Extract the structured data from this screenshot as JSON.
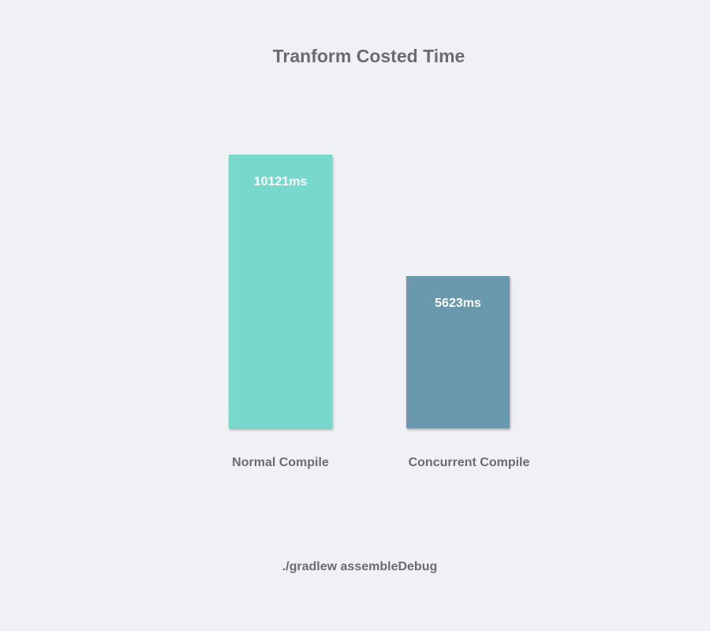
{
  "chart_data": {
    "type": "bar",
    "title": "Tranform Costed Time",
    "categories": [
      "Normal Compile",
      "Concurrent Compile"
    ],
    "values": [
      10121,
      5623
    ],
    "value_labels": [
      "10121ms",
      "5623ms"
    ],
    "colors": [
      "#79d8cc",
      "#6a98ad"
    ],
    "unit": "ms",
    "footer": "./gradlew assembleDebug",
    "grid": false,
    "ylim": [
      0,
      10121
    ]
  }
}
